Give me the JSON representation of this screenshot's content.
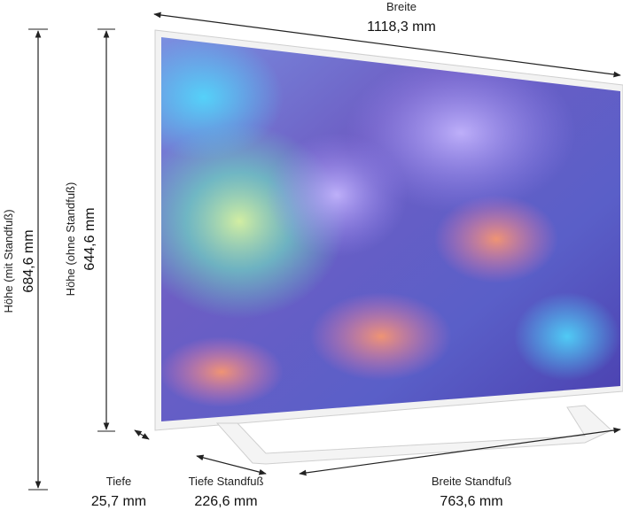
{
  "dimensions": {
    "width": {
      "label": "Breite",
      "value": "1118,3 mm"
    },
    "height_with_stand": {
      "label": "Höhe (mit Standfuß)",
      "value": "684,6 mm"
    },
    "height_without_stand": {
      "label": "Höhe (ohne Standfuß)",
      "value": "644,6 mm"
    },
    "depth": {
      "label": "Tiefe",
      "value": "25,7 mm"
    },
    "stand_depth": {
      "label": "Tiefe Standfuß",
      "value": "226,6 mm"
    },
    "stand_width": {
      "label": "Breite Standfuß",
      "value": "763,6 mm"
    }
  }
}
